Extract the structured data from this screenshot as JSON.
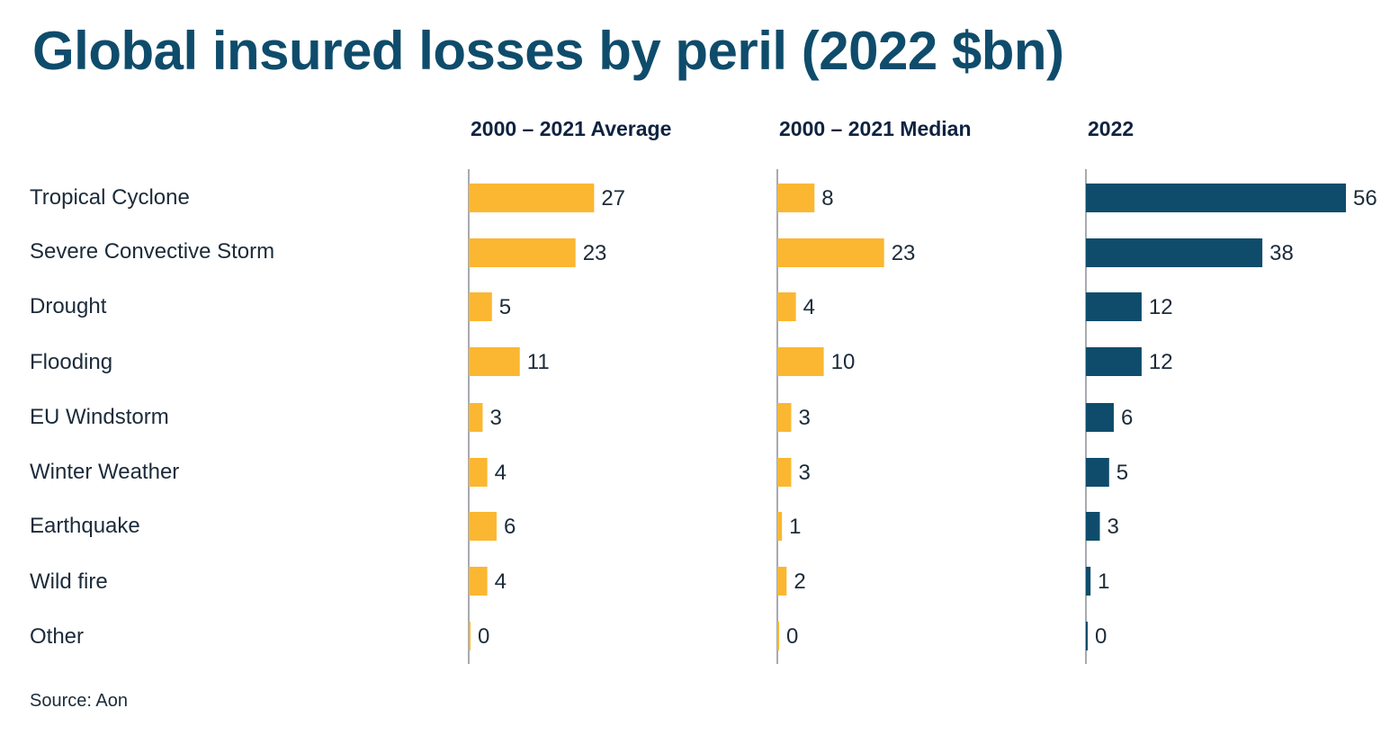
{
  "title": "Global insured losses by peril (2022 $bn)",
  "source": "Source: Aon",
  "chart_data": {
    "type": "bar",
    "orientation": "horizontal",
    "categories": [
      "Tropical Cyclone",
      "Severe Convective Storm",
      "Drought",
      "Flooding",
      "EU Windstorm",
      "Winter Weather",
      "Earthquake",
      "Wild fire",
      "Other"
    ],
    "series": [
      {
        "name": "2000 – 2021 Average",
        "values": [
          27,
          23,
          5,
          11,
          3,
          4,
          6,
          4,
          0
        ],
        "color": "#fbb731"
      },
      {
        "name": "2000 – 2021 Median",
        "values": [
          8,
          23,
          4,
          10,
          3,
          3,
          1,
          2,
          0
        ],
        "color": "#fbb731"
      },
      {
        "name": "2022",
        "values": [
          56,
          38,
          12,
          12,
          6,
          5,
          3,
          1,
          0
        ],
        "color": "#0f4c6b"
      }
    ],
    "xlim": [
      0,
      56
    ],
    "grid": false,
    "legend": "none"
  }
}
